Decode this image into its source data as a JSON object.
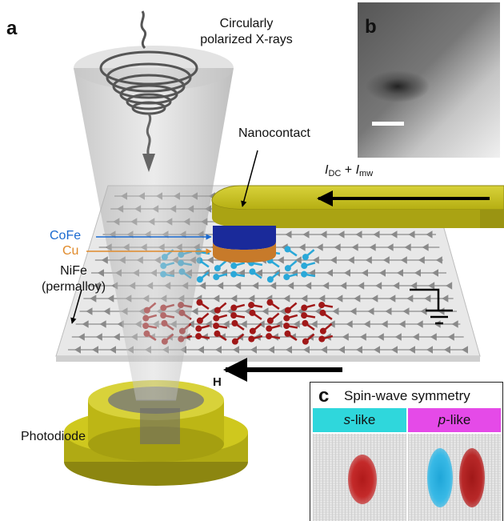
{
  "panels": {
    "a": "a",
    "b": "b",
    "c": "c"
  },
  "labels": {
    "xray_line1": "Circularly",
    "xray_line2": "polarized X-rays",
    "nanocontact": "Nanocontact",
    "cofe": "CoFe",
    "cu": "Cu",
    "nife_line1": "NiFe",
    "nife_line2": "(permalloy)",
    "current_i1": "I",
    "current_sub1": "DC",
    "current_plus": " + ",
    "current_i2": "I",
    "current_sub2": "mw",
    "field": "H",
    "photodiode": "Photodiode"
  },
  "panel_c": {
    "title": "Spin-wave symmetry",
    "tab_s_italic": "s",
    "tab_s_rest": "-like",
    "tab_p_italic": "p",
    "tab_p_rest": "-like"
  },
  "colors": {
    "gold": "#c8c21a",
    "gold_dark": "#8c8610",
    "cofe_blue": "#1a2a9a",
    "cu_orange": "#c77a2a",
    "cyan_spins": "#2aa8d8",
    "red_spins": "#a01818",
    "s_tab": "#2fd7dc",
    "p_tab": "#e54ae8"
  }
}
